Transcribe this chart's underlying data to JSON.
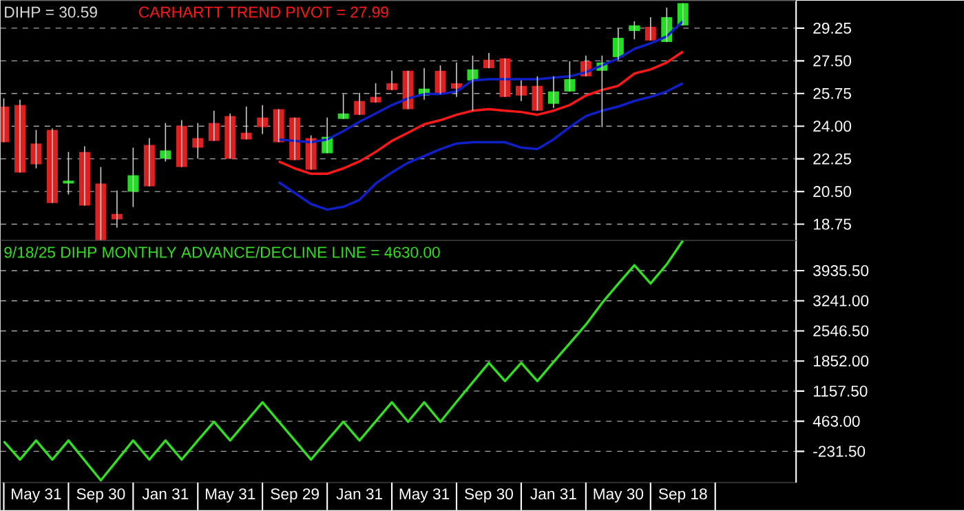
{
  "chart_data": [
    {
      "type": "candlestick",
      "title": "DIHP = 30.59",
      "categories": [
        null,
        null,
        null,
        null,
        null,
        null,
        null,
        null,
        null,
        null,
        null,
        null,
        null,
        null,
        null,
        null,
        null,
        null,
        null,
        null,
        null,
        null,
        null,
        null,
        null,
        null,
        null,
        null,
        null,
        null,
        null,
        null,
        null,
        null,
        null,
        null,
        null,
        null,
        null,
        null,
        null,
        null,
        null
      ],
      "ohlc": [
        [
          25.05,
          25.49,
          23.14,
          23.14
        ],
        [
          25.13,
          25.42,
          21.52,
          21.52
        ],
        [
          23.07,
          23.8,
          21.74,
          21.96
        ],
        [
          23.8,
          23.88,
          19.89,
          19.89
        ],
        [
          20.93,
          22.62,
          20.34,
          21.08
        ],
        [
          22.62,
          22.92,
          19.75,
          19.75
        ],
        [
          20.93,
          21.81,
          17.88,
          17.88
        ],
        [
          19.3,
          20.56,
          18.57,
          19.01
        ],
        [
          20.49,
          22.85,
          19.67,
          21.37
        ],
        [
          22.99,
          23.36,
          20.78,
          20.78
        ],
        [
          22.26,
          24.17,
          22.11,
          22.7
        ],
        [
          24.02,
          24.32,
          21.81,
          21.81
        ],
        [
          23.36,
          24.17,
          22.26,
          22.85
        ],
        [
          24.17,
          24.83,
          23.21,
          23.21
        ],
        [
          24.54,
          24.68,
          22.26,
          22.26
        ],
        [
          23.65,
          25.05,
          23.29,
          23.29
        ],
        [
          24.46,
          25.13,
          23.58,
          23.95
        ],
        [
          24.91,
          24.91,
          23.14,
          23.14
        ],
        [
          24.46,
          24.46,
          22.18,
          22.18
        ],
        [
          23.36,
          23.51,
          21.67,
          21.67
        ],
        [
          22.55,
          24.46,
          22.55,
          23.43
        ],
        [
          24.39,
          25.72,
          24.39,
          24.68
        ],
        [
          25.35,
          25.79,
          24.61,
          24.61
        ],
        [
          25.57,
          26.3,
          25.27,
          25.27
        ],
        [
          26.3,
          26.97,
          25.94,
          25.94
        ],
        [
          26.97,
          26.97,
          24.91,
          24.91
        ],
        [
          25.64,
          27.11,
          25.42,
          26.01
        ],
        [
          26.97,
          27.26,
          25.72,
          25.72
        ],
        [
          26.3,
          27.41,
          25.57,
          26.01
        ],
        [
          26.45,
          27.78,
          24.83,
          27.04
        ],
        [
          27.56,
          27.92,
          27.11,
          27.11
        ],
        [
          27.63,
          27.63,
          25.57,
          25.57
        ],
        [
          26.16,
          26.45,
          25.35,
          25.64
        ],
        [
          26.16,
          26.67,
          24.83,
          24.83
        ],
        [
          25.2,
          26.67,
          24.98,
          25.86
        ],
        [
          25.86,
          27.48,
          25.86,
          26.52
        ],
        [
          27.48,
          27.78,
          26.67,
          26.67
        ],
        [
          26.97,
          27.78,
          23.95,
          27.41
        ],
        [
          27.7,
          29.25,
          27.56,
          28.73
        ],
        [
          29.1,
          29.62,
          28.66,
          29.4
        ],
        [
          29.32,
          29.84,
          28.59,
          28.59
        ],
        [
          28.51,
          30.35,
          28.51,
          29.84
        ],
        [
          29.4,
          30.59,
          29.4,
          30.59
        ]
      ],
      "colors": [
        "#dd2020",
        "#dd2020",
        "#dd2020",
        "#dd2020",
        "#22dd22",
        "#dd2020",
        "#dd2020",
        "#dd2020",
        "#22dd22",
        "#dd2020",
        "#22dd22",
        "#dd2020",
        "#dd2020",
        "#dd2020",
        "#dd2020",
        "#dd2020",
        "#dd2020",
        "#dd2020",
        "#dd2020",
        "#dd2020",
        "#22dd22",
        "#22dd22",
        "#dd2020",
        "#dd2020",
        "#dd2020",
        "#dd2020",
        "#22dd22",
        "#dd2020",
        "#dd2020",
        "#22dd22",
        "#dd2020",
        "#dd2020",
        "#dd2020",
        "#dd2020",
        "#22dd22",
        "#22dd22",
        "#dd2020",
        "#22dd22",
        "#22dd22",
        "#22dd22",
        "#dd2020",
        "#22dd22",
        "#22dd22"
      ],
      "series": [
        {
          "type": "line",
          "color": "#1020c8",
          "values": [
            null,
            null,
            null,
            null,
            null,
            null,
            null,
            null,
            null,
            null,
            null,
            null,
            null,
            null,
            null,
            null,
            null,
            23.29,
            23.21,
            23.14,
            23.29,
            23.73,
            24.24,
            24.68,
            25.13,
            25.49,
            25.72,
            25.72,
            25.86,
            26.45,
            26.52,
            26.52,
            26.52,
            26.52,
            26.6,
            26.67,
            26.89,
            27.26,
            27.63,
            28.14,
            28.44,
            28.81,
            29.62
          ]
        },
        {
          "type": "line",
          "color": "#1020c8",
          "values": [
            null,
            null,
            null,
            null,
            null,
            null,
            null,
            null,
            null,
            null,
            null,
            null,
            null,
            null,
            null,
            null,
            null,
            21.0,
            20.42,
            19.83,
            19.53,
            19.68,
            20.05,
            20.93,
            21.52,
            22.04,
            22.4,
            22.77,
            23.07,
            23.14,
            23.14,
            23.14,
            22.85,
            22.77,
            23.29,
            23.95,
            24.54,
            24.83,
            25.05,
            25.35,
            25.57,
            25.86,
            26.3
          ]
        },
        {
          "type": "line",
          "name": "CARHARTT TREND PIVOT = 27.99",
          "color": "#ff1818",
          "values": [
            null,
            null,
            null,
            null,
            null,
            null,
            null,
            null,
            null,
            null,
            null,
            null,
            null,
            null,
            null,
            null,
            null,
            22.11,
            21.74,
            21.45,
            21.45,
            21.74,
            22.11,
            22.62,
            23.21,
            23.65,
            24.1,
            24.32,
            24.61,
            24.83,
            24.91,
            24.83,
            24.76,
            24.61,
            24.83,
            25.13,
            25.64,
            25.94,
            26.16,
            26.82,
            27.04,
            27.41,
            27.99
          ]
        }
      ],
      "ylim": [
        17.875,
        30.72
      ],
      "yticks": [
        {
          "value": 18.75,
          "label": "18.75"
        },
        {
          "value": 20.5,
          "label": "20.50"
        },
        {
          "value": 22.25,
          "label": "22.25"
        },
        {
          "value": 24,
          "label": "24.00"
        },
        {
          "value": 25.75,
          "label": "25.75"
        },
        {
          "value": 27.5,
          "label": "27.50"
        },
        {
          "value": 29.25,
          "label": "29.25"
        }
      ],
      "grid": "y",
      "legend": "top left",
      "tick_labels": "y"
    },
    {
      "type": "line",
      "categories": [
        null,
        null,
        "May 31",
        null,
        null,
        null,
        "Sep 30",
        null,
        null,
        null,
        "Jan 31",
        null,
        null,
        null,
        "May 31",
        null,
        null,
        null,
        "Sep 29",
        null,
        null,
        null,
        "Jan 31",
        null,
        null,
        null,
        "May 31",
        null,
        null,
        null,
        "Sep 30",
        null,
        null,
        null,
        "Jan 31",
        null,
        null,
        null,
        "May 30",
        null,
        null,
        null,
        "Sep 18"
      ],
      "series": [
        {
          "name": "9/18/25  DIHP MONTHLY ADVANCE/DECLINE LINE = 4630.00",
          "color": "#33dd22",
          "values": [
            0,
            -420,
            20,
            -420,
            20,
            -440,
            -900,
            -440,
            20,
            -420,
            20,
            -420,
            20,
            450,
            20,
            460,
            900,
            460,
            20,
            -420,
            20,
            450,
            20,
            460,
            900,
            450,
            900,
            450,
            910,
            1360,
            1810,
            1390,
            1810,
            1390,
            1830,
            2260,
            2690,
            3190,
            3630,
            4060,
            3640,
            4080,
            4630
          ]
        }
      ],
      "ylim": [
        -950,
        4630
      ],
      "yticks": [
        {
          "value": -231.5,
          "label": "-231.50"
        },
        {
          "value": 463,
          "label": "463.00"
        },
        {
          "value": 1157.5,
          "label": "1157.50"
        },
        {
          "value": 1852,
          "label": "1852.00"
        },
        {
          "value": 2546.5,
          "label": "2546.50"
        },
        {
          "value": 3241,
          "label": "3241.00"
        },
        {
          "value": 3935.5,
          "label": "3935.50"
        }
      ],
      "grid": "y",
      "legend": "top left"
    }
  ]
}
